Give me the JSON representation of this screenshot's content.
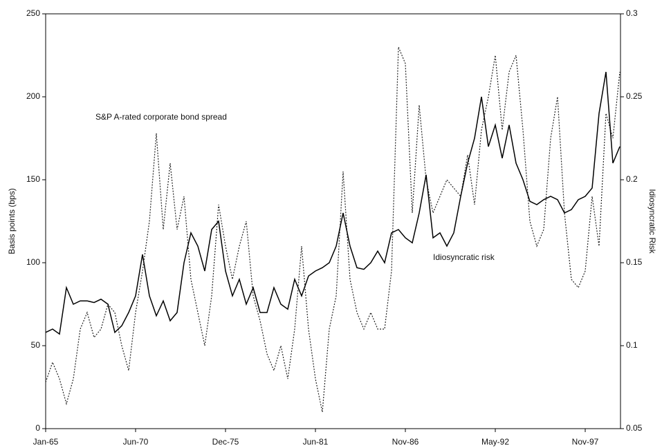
{
  "chart_data": {
    "type": "line",
    "y_label": "Basis points (bps)",
    "y2_label": "Idiosyncratic Risk",
    "categories": [
      "Jan-65",
      null,
      null,
      null,
      null,
      null,
      null,
      null,
      null,
      null,
      null,
      null,
      null,
      "Jun-70",
      null,
      null,
      null,
      null,
      null,
      null,
      null,
      null,
      null,
      null,
      null,
      null,
      "Dec-75",
      null,
      null,
      null,
      null,
      null,
      null,
      null,
      null,
      null,
      null,
      null,
      null,
      "Jun-81",
      null,
      null,
      null,
      null,
      null,
      null,
      null,
      null,
      null,
      null,
      null,
      null,
      "Nov-86",
      null,
      null,
      null,
      null,
      null,
      null,
      null,
      null,
      null,
      null,
      null,
      null,
      "May-92",
      null,
      null,
      null,
      null,
      null,
      null,
      null,
      null,
      null,
      null,
      null,
      null,
      "Nov-97",
      null,
      null,
      null,
      null,
      null
    ],
    "series": [
      {
        "name": "S&P A-rated corporate bond spread",
        "color": "#222222",
        "line_style": "dotted",
        "values": [
          28,
          40,
          30,
          15,
          30,
          60,
          70,
          55,
          60,
          75,
          70,
          50,
          35,
          70,
          95,
          125,
          178,
          120,
          160,
          120,
          140,
          90,
          70,
          50,
          80,
          135,
          110,
          90,
          110,
          125,
          80,
          65,
          45,
          35,
          50,
          30,
          60,
          110,
          60,
          30,
          10,
          60,
          80,
          155,
          90,
          70,
          60,
          70,
          60,
          60,
          95,
          230,
          220,
          130,
          195,
          150,
          130,
          140,
          150,
          145,
          140,
          165,
          135,
          180,
          200,
          225,
          180,
          215,
          225,
          180,
          125,
          110,
          120,
          175,
          200,
          130,
          90,
          85,
          95,
          140,
          110,
          190,
          175,
          215
        ]
      },
      {
        "name": "Idiosyncratic risk",
        "color": "#000000",
        "line_style": "solid",
        "axis": "y2",
        "values": [
          0.108,
          0.11,
          0.107,
          0.135,
          0.125,
          0.127,
          0.127,
          0.126,
          0.128,
          0.125,
          0.108,
          0.112,
          0.12,
          0.13,
          0.155,
          0.13,
          0.118,
          0.127,
          0.115,
          0.12,
          0.15,
          0.168,
          0.16,
          0.145,
          0.17,
          0.175,
          0.145,
          0.13,
          0.14,
          0.125,
          0.135,
          0.12,
          0.12,
          0.135,
          0.125,
          0.122,
          0.14,
          0.13,
          0.142,
          0.145,
          0.147,
          0.15,
          0.16,
          0.18,
          0.16,
          0.147,
          0.146,
          0.15,
          0.157,
          0.15,
          0.168,
          0.17,
          0.165,
          0.162,
          0.18,
          0.203,
          0.165,
          0.168,
          0.16,
          0.168,
          0.19,
          0.21,
          0.225,
          0.25,
          0.22,
          0.233,
          0.213,
          0.233,
          0.21,
          0.2,
          0.187,
          0.185,
          0.188,
          0.19,
          0.188,
          0.18,
          0.182,
          0.188,
          0.19,
          0.195,
          0.24,
          0.265,
          0.21,
          0.22
        ]
      }
    ],
    "ylim": [
      0,
      250
    ],
    "yticks": [
      0,
      50,
      100,
      150,
      200,
      250
    ],
    "y2lim": [
      0.05,
      0.3
    ],
    "y2ticks": [
      0.05,
      0.1,
      0.15,
      0.2,
      0.25,
      0.3
    ],
    "grid": false
  }
}
